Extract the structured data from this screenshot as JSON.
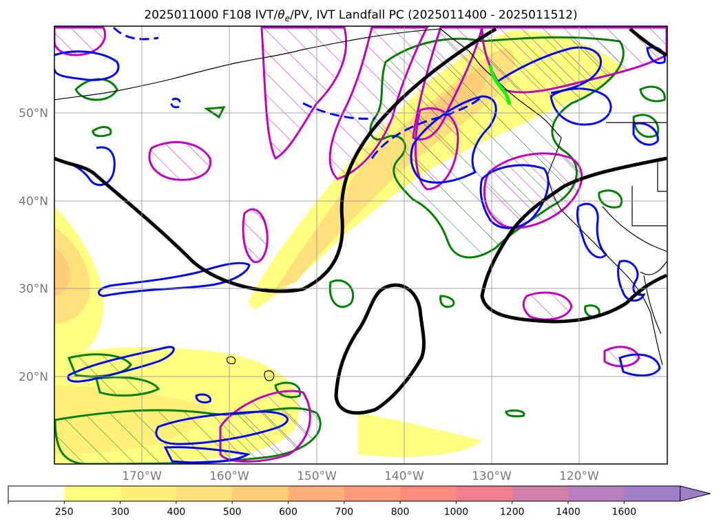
{
  "title": "2025011000 F108 IVT/θe/PV, IVT Landfall PC (2025011400 - 2025011512)",
  "title_parts": {
    "prefix": "2025011000 F108 IVT/",
    "theta": "θ",
    "theta_sub": "e",
    "suffix": "/PV, IVT Landfall PC (2025011400 - 2025011512)"
  },
  "lat_labels": [
    "50°N",
    "40°N",
    "30°N",
    "20°N"
  ],
  "lon_labels": [
    "170°W",
    "160°W",
    "150°W",
    "140°W",
    "130°W",
    "120°W"
  ],
  "colorbar": {
    "ticks": [
      "250",
      "300",
      "400",
      "500",
      "600",
      "700",
      "800",
      "1000",
      "1200",
      "1400",
      "1600"
    ],
    "colors": [
      "#ffffff",
      "#ffff80",
      "#fff07a",
      "#ffe07a",
      "#ffcc7a",
      "#ffb07a",
      "#ff9a7a",
      "#ff8a80",
      "#ee8090",
      "#d080a8",
      "#b87fc0",
      "#a07ec8"
    ]
  },
  "colors": {
    "ivt_contour": "#000000",
    "blue_contour": "#0000ff",
    "green_contour": "#008000",
    "magenta_contour": "#c000c0",
    "landfall": "#00ff00"
  }
}
